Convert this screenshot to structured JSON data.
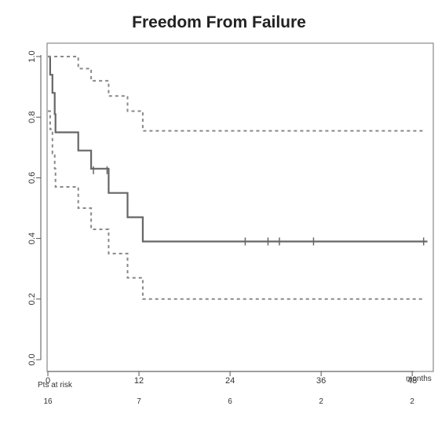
{
  "chart_data": {
    "type": "line",
    "title": "Freedom From Failure",
    "xlabel": "months",
    "ylabel": "",
    "xlim": [
      0,
      50
    ],
    "ylim": [
      0,
      1
    ],
    "x_ticks": [
      0,
      12,
      24,
      36,
      48
    ],
    "y_ticks": [
      "0.0",
      "0.2",
      "0.4",
      "0.6",
      "0.8",
      "1.0"
    ],
    "series": [
      {
        "style": "solid",
        "steps": [
          [
            0,
            1.0
          ],
          [
            0.3,
            0.94
          ],
          [
            0.6,
            0.88
          ],
          [
            0.9,
            0.81
          ],
          [
            1.0,
            0.75
          ],
          [
            4,
            0.69
          ],
          [
            5.7,
            0.63
          ],
          [
            8,
            0.55
          ],
          [
            10.5,
            0.47
          ],
          [
            12.5,
            0.39
          ],
          [
            50,
            0.39
          ]
        ],
        "censored": [
          [
            6,
            0.625
          ],
          [
            7.8,
            0.625
          ],
          [
            26,
            0.39
          ],
          [
            29,
            0.39
          ],
          [
            30.5,
            0.39
          ],
          [
            35,
            0.39
          ],
          [
            49.5,
            0.39
          ]
        ]
      },
      {
        "style": "dashed",
        "steps": [
          [
            0,
            1.0
          ],
          [
            1,
            1.0
          ],
          [
            4,
            0.96
          ],
          [
            5.7,
            0.92
          ],
          [
            8,
            0.87
          ],
          [
            10.5,
            0.82
          ],
          [
            12.5,
            0.755
          ],
          [
            49.5,
            0.755
          ]
        ],
        "censored": []
      },
      {
        "style": "dashed",
        "steps": [
          [
            0,
            0.82
          ],
          [
            0.3,
            0.76
          ],
          [
            0.6,
            0.68
          ],
          [
            0.9,
            0.63
          ],
          [
            1.0,
            0.57
          ],
          [
            4,
            0.5
          ],
          [
            5.7,
            0.43
          ],
          [
            8,
            0.35
          ],
          [
            10.5,
            0.27
          ],
          [
            12.5,
            0.2
          ],
          [
            49.5,
            0.2
          ]
        ],
        "censored": []
      }
    ],
    "risk_table": {
      "label": "Pts at risk",
      "values": [
        "16",
        "7",
        "6",
        "2",
        "2"
      ]
    }
  },
  "colors": {
    "solid": "#666666",
    "dashed": "#888888",
    "frame": "#888888"
  }
}
